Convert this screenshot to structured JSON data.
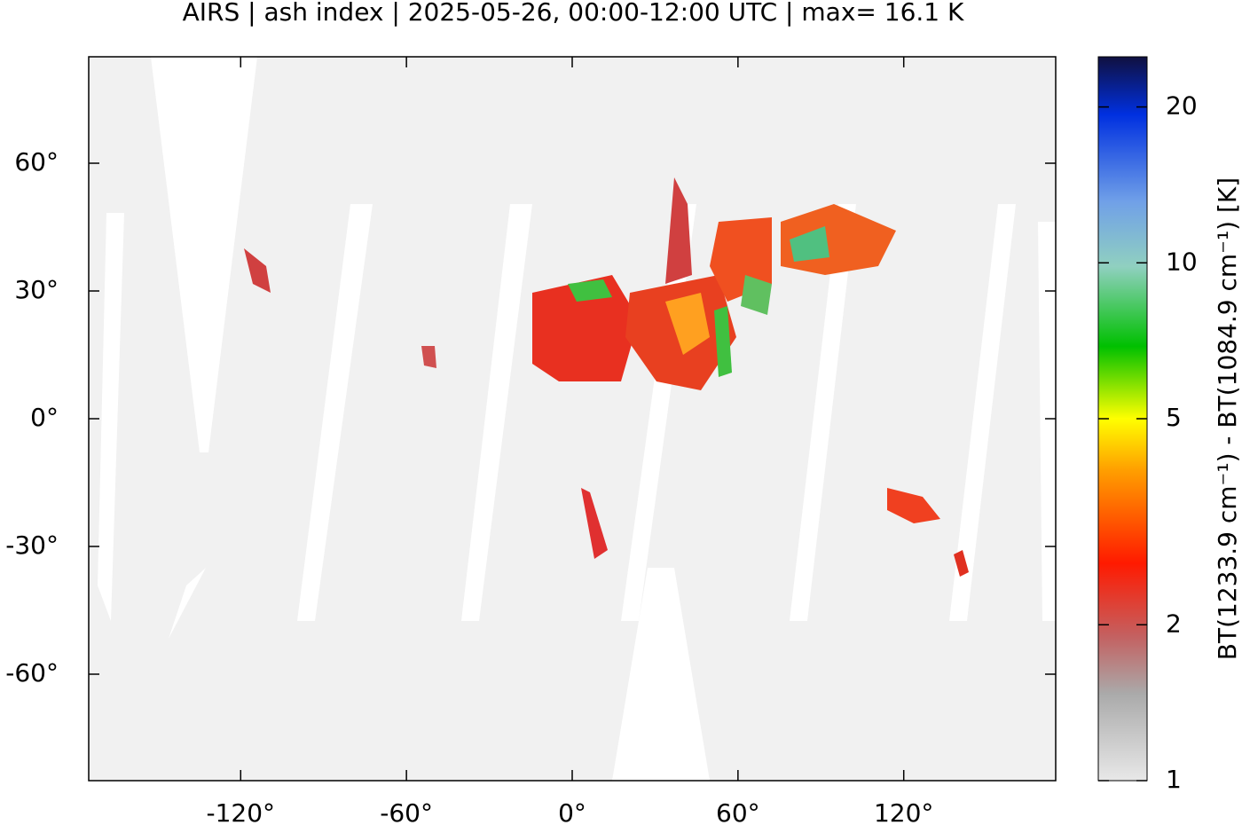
{
  "chart_data": {
    "type": "map",
    "title": "AIRS | ash index | 2025-05-26, 00:00-12:00 UTC | max= 16.1 K",
    "xlim": [
      -175,
      175
    ],
    "ylim": [
      -85,
      85
    ],
    "xticks": [
      {
        "value": -120,
        "label": "-120°"
      },
      {
        "value": -60,
        "label": "-60°"
      },
      {
        "value": 0,
        "label": "0°"
      },
      {
        "value": 60,
        "label": "60°"
      },
      {
        "value": 120,
        "label": "120°"
      }
    ],
    "yticks": [
      {
        "value": -60,
        "label": "-60°"
      },
      {
        "value": -30,
        "label": "-30°"
      },
      {
        "value": 0,
        "label": "0°"
      },
      {
        "value": 30,
        "label": "30°"
      },
      {
        "value": 60,
        "label": "60°"
      }
    ],
    "colorbar": {
      "label": "BT(1233.9 cm⁻¹) - BT(1084.9 cm⁻¹) [K]",
      "scale": "log",
      "lim": [
        1,
        25
      ],
      "ticks": [
        1,
        2,
        5,
        10,
        20
      ]
    }
  }
}
